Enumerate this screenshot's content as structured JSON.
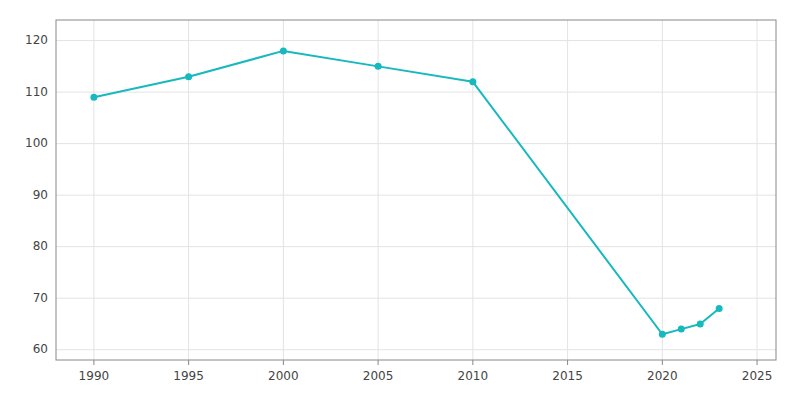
{
  "chart_data": {
    "type": "line",
    "x": [
      1990,
      1995,
      2000,
      2005,
      2010,
      2020,
      2021,
      2022,
      2023
    ],
    "values": [
      109,
      113,
      118,
      115,
      112,
      63,
      64,
      65,
      68
    ],
    "color": "#17b8be",
    "marker": "circle",
    "xlim": [
      1988,
      2026
    ],
    "ylim": [
      58,
      124
    ],
    "xticks": [
      1990,
      1995,
      2000,
      2005,
      2010,
      2015,
      2020,
      2025
    ],
    "yticks": [
      60,
      70,
      80,
      90,
      100,
      110,
      120
    ],
    "grid": true
  }
}
